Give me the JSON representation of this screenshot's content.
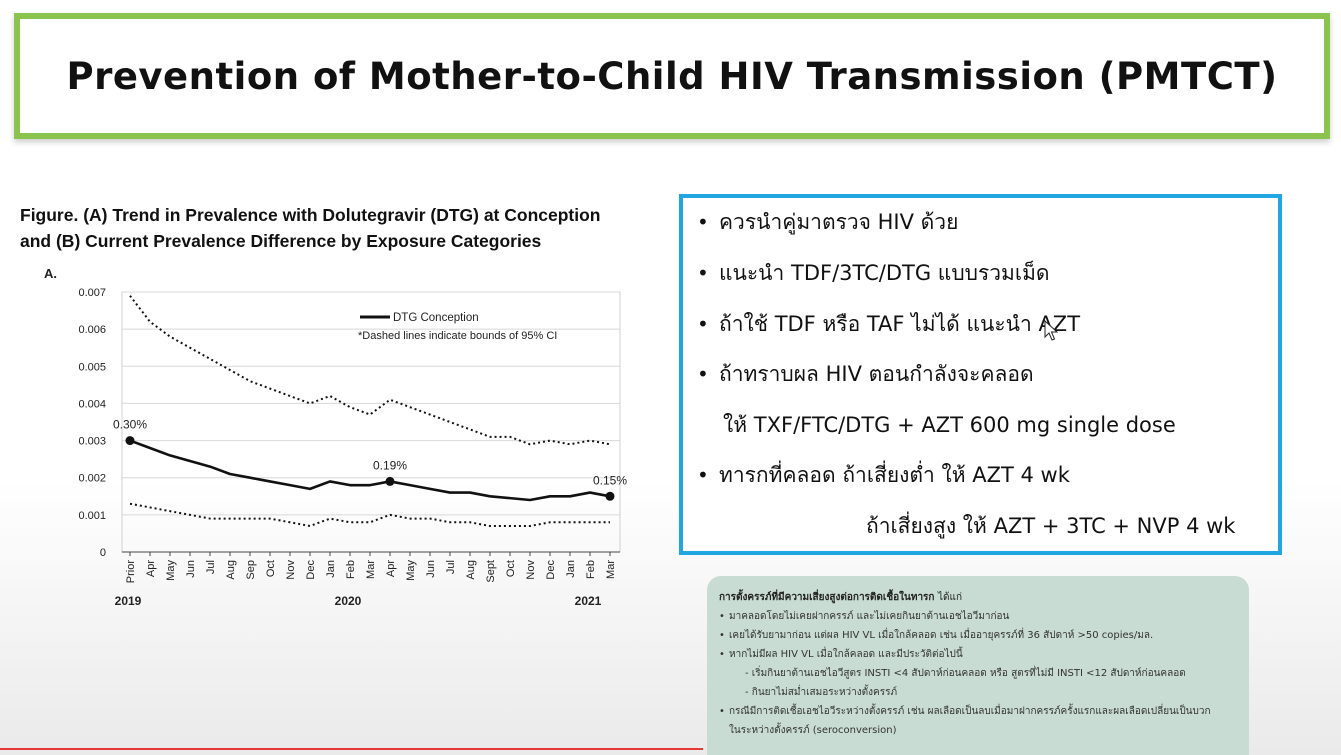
{
  "title": "Prevention of Mother-to-Child HIV Transmission (PMTCT)",
  "figure": {
    "caption_line1": "Figure. (A) Trend in Prevalence with Dolutegravir (DTG) at Conception",
    "caption_line2": "and (B) Current Prevalence Difference by Exposure Categories",
    "panel_label": "A."
  },
  "chart_data": {
    "type": "line",
    "categories": [
      "Prior",
      "Apr",
      "May",
      "Jun",
      "Jul",
      "Aug",
      "Sep",
      "Oct",
      "Nov",
      "Dec",
      "Jan",
      "Feb",
      "Mar",
      "Apr",
      "May",
      "Jun",
      "Jul",
      "Aug",
      "Sept",
      "Oct",
      "Nov",
      "Dec",
      "Jan",
      "Feb",
      "Mar"
    ],
    "year_labels": [
      {
        "label": "2019",
        "category_index": 0
      },
      {
        "label": "2020",
        "category_index": 11
      },
      {
        "label": "2021",
        "category_index": 23
      }
    ],
    "ylim": [
      0,
      0.007
    ],
    "yticks": [
      "0",
      "0.001",
      "0.002",
      "0.003",
      "0.004",
      "0.005",
      "0.006",
      "0.007"
    ],
    "grid": true,
    "legend_position": "top-right",
    "legend": {
      "series_label": "DTG Conception",
      "note": "*Dashed lines indicate bounds of 95% CI"
    },
    "series": [
      {
        "name": "DTG Conception",
        "style": "solid",
        "values": [
          0.003,
          0.0028,
          0.0026,
          0.00245,
          0.0023,
          0.0021,
          0.002,
          0.0019,
          0.0018,
          0.0017,
          0.0019,
          0.0018,
          0.0018,
          0.0019,
          0.0018,
          0.0017,
          0.0016,
          0.0016,
          0.0015,
          0.00145,
          0.0014,
          0.0015,
          0.0015,
          0.0016,
          0.0015
        ]
      },
      {
        "name": "upper 95% CI",
        "style": "dotted",
        "values": [
          0.0069,
          0.0062,
          0.0058,
          0.0055,
          0.0052,
          0.0049,
          0.0046,
          0.0044,
          0.0042,
          0.004,
          0.0042,
          0.0039,
          0.0037,
          0.0041,
          0.0039,
          0.0037,
          0.0035,
          0.0033,
          0.0031,
          0.0031,
          0.0029,
          0.003,
          0.0029,
          0.003,
          0.0029
        ]
      },
      {
        "name": "lower 95% CI",
        "style": "dotted",
        "values": [
          0.0013,
          0.0012,
          0.0011,
          0.001,
          0.0009,
          0.0009,
          0.0009,
          0.0009,
          0.0008,
          0.0007,
          0.0009,
          0.0008,
          0.0008,
          0.001,
          0.0009,
          0.0009,
          0.0008,
          0.0008,
          0.0007,
          0.0007,
          0.0007,
          0.0008,
          0.0008,
          0.0008,
          0.0008
        ]
      }
    ],
    "annotations": [
      {
        "text": "0.30%",
        "category_index": 0,
        "value": 0.003
      },
      {
        "text": "0.19%",
        "category_index": 13,
        "value": 0.0019
      },
      {
        "text": "0.15%",
        "category_index": 24,
        "value": 0.0015
      }
    ]
  },
  "bullets": {
    "b1": "ควรนำคู่มาตรวจ HIV ด้วย",
    "b2": "แนะนำ TDF/3TC/DTG แบบรวมเม็ด",
    "b3": "ถ้าใช้ TDF หรือ TAF ไม่ได้ แนะนำ AZT",
    "b4": "ถ้าทราบผล HIV ตอนกำลังจะคลอด",
    "b4_cont": "ให้ TXF/FTC/DTG + AZT 600 mg single dose",
    "b5": "ทารกที่คลอด ถ้าเสี่ยงต่ำ ให้ AZT 4 wk",
    "b5_cont": "ถ้าเสี่ยงสูง ให้ AZT + 3TC + NVP 4 wk"
  },
  "note": {
    "heading": "การตั้งครรภ์ที่มีความเสี่ยงสูงต่อการติดเชื้อในทารก",
    "heading_suffix": "ได้แก่",
    "item1": "มาคลอดโดยไม่เคยฝากครรภ์ และไม่เคยกินยาต้านเอชไอวีมาก่อน",
    "item2": "เคยได้รับยามาก่อน แต่ผล HIV VL เมื่อใกล้คลอด เช่น เมื่ออายุครรภ์ที่ 36 สัปดาห์ >50 copies/มล.",
    "item3": "หากไม่มีผล HIV VL เมื่อใกล้คลอด และมีประวัติต่อไปนี้",
    "item3_sub1": "- เริ่มกินยาต้านเอชไอวีสูตร INSTI <4 สัปดาห์ก่อนคลอด หรือ สูตรที่ไม่มี INSTI <12 สัปดาห์ก่อนคลอด",
    "item3_sub2": "- กินยาไม่สม่ำเสมอระหว่างตั้งครรภ์",
    "item4": "กรณีมีการติดเชื้อเอชไอวีระหว่างตั้งครรภ์ เช่น ผลเลือดเป็นลบเมื่อมาฝากครรภ์ครั้งแรกและผลเลือดเปลี่ยนเป็นบวก",
    "item4_cont": "ในระหว่างตั้งครรภ์ (seroconversion)"
  },
  "colors": {
    "title_border": "#8ac44f",
    "bullet_border": "#22a5e0",
    "note_bg": "#c8dcd3",
    "accent_line": "#e53935"
  }
}
